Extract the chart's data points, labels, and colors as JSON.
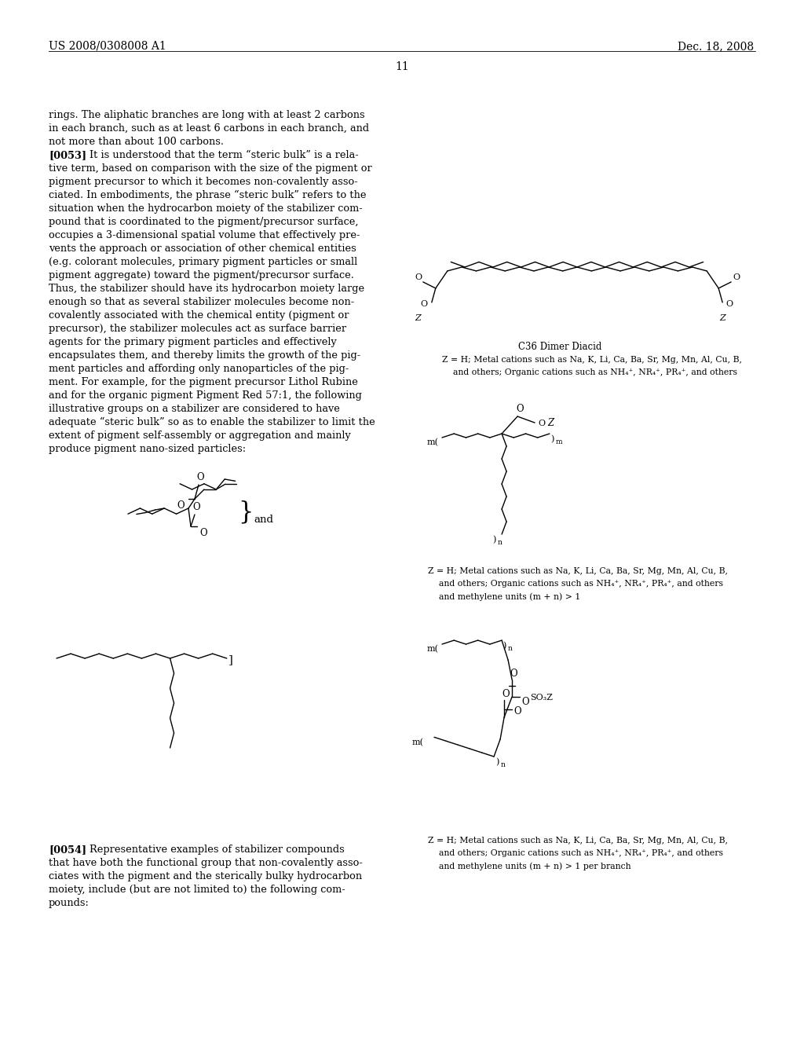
{
  "page_header_left": "US 2008/0308008 A1",
  "page_header_right": "Dec. 18, 2008",
  "page_number": "11",
  "background_color": "#ffffff",
  "text_color": "#000000",
  "main_text_lines": [
    "rings. The aliphatic branches are long with at least 2 carbons",
    "in each branch, such as at least 6 carbons in each branch, and",
    "not more than about 100 carbons.",
    "[0053]    It is understood that the term “steric bulk” is a rela-",
    "tive term, based on comparison with the size of the pigment or",
    "pigment precursor to which it becomes non-covalently asso-",
    "ciated. In embodiments, the phrase “steric bulk” refers to the",
    "situation when the hydrocarbon moiety of the stabilizer com-",
    "pound that is coordinated to the pigment/precursor surface,",
    "occupies a 3-dimensional spatial volume that effectively pre-",
    "vents the approach or association of other chemical entities",
    "(e.g. colorant molecules, primary pigment particles or small",
    "pigment aggregate) toward the pigment/precursor surface.",
    "Thus, the stabilizer should have its hydrocarbon moiety large",
    "enough so that as several stabilizer molecules become non-",
    "covalently associated with the chemical entity (pigment or",
    "precursor), the stabilizer molecules act as surface barrier",
    "agents for the primary pigment particles and effectively",
    "encapsulates them, and thereby limits the growth of the pig-",
    "ment particles and affording only nanoparticles of the pig-",
    "ment. For example, for the pigment precursor Lithol Rubine",
    "and for the organic pigment Pigment Red 57:1, the following",
    "illustrative groups on a stabilizer are considered to have",
    "adequate “steric bulk” so as to enable the stabilizer to limit the",
    "extent of pigment self-assembly or aggregation and mainly",
    "produce pigment nano-sized particles:"
  ],
  "bottom_text_lines": [
    "[0054]    Representative examples of stabilizer compounds",
    "that have both the functional group that non-covalently asso-",
    "ciates with the pigment and the sterically bulky hydrocarbon",
    "moiety, include (but are not limited to) the following com-",
    "pounds:"
  ],
  "c36_label": "C36 Dimer Diacid",
  "c36_cap1": "Z = H; Metal cations such as Na, K, Li, Ca, Ba, Sr, Mg, Mn, Al, Cu, B,",
  "c36_cap2": "    and others; Organic cations such as NH₄⁺, NR₄⁺, PR₄⁺, and others",
  "rm_cap1": "Z = H; Metal cations such as Na, K, Li, Ca, Ba, Sr, Mg, Mn, Al, Cu, B,",
  "rm_cap2": "    and others; Organic cations such as NH₄⁺, NR₄⁺, PR₄⁺, and others",
  "rm_cap3": "    and methylene units (m + n) > 1",
  "rb_cap1": "Z = H; Metal cations such as Na, K, Li, Ca, Ba, Sr, Mg, Mn, Al, Cu, B,",
  "rb_cap2": "    and others; Organic cations such as NH₄⁺, NR₄⁺, PR₄⁺, and others",
  "rb_cap3": "    and methylene units (m + n) > 1 per branch"
}
